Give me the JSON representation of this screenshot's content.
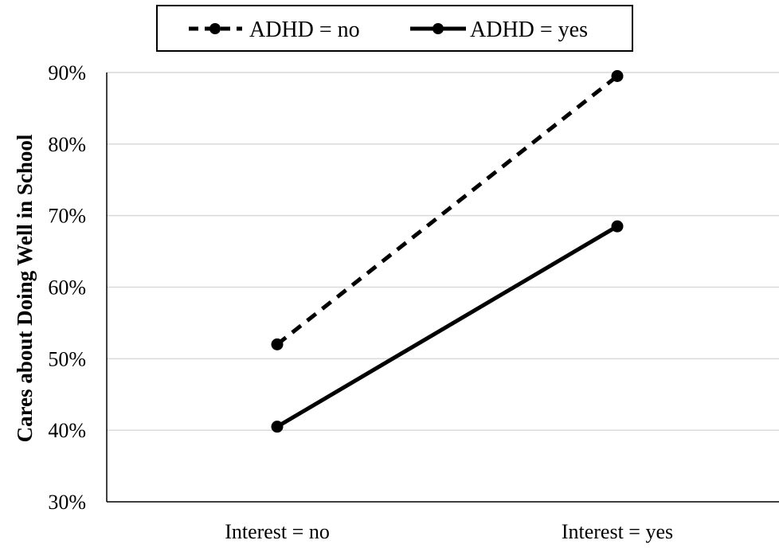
{
  "chart_data": {
    "type": "line",
    "title": "",
    "xlabel": "",
    "ylabel": "Cares about Doing Well in School",
    "categories": [
      "Interest = no",
      "Interest = yes"
    ],
    "y_ticks": [
      "30%",
      "40%",
      "50%",
      "60%",
      "70%",
      "80%",
      "90%"
    ],
    "ylim": [
      30,
      90
    ],
    "y_unit": "%",
    "grid": true,
    "legend_position": "top",
    "series": [
      {
        "name": "ADHD = no",
        "values": [
          52,
          89.5
        ],
        "line_style": "dashed",
        "color": "#000000"
      },
      {
        "name": "ADHD = yes",
        "values": [
          40.5,
          68.5
        ],
        "line_style": "solid",
        "color": "#000000"
      }
    ]
  }
}
